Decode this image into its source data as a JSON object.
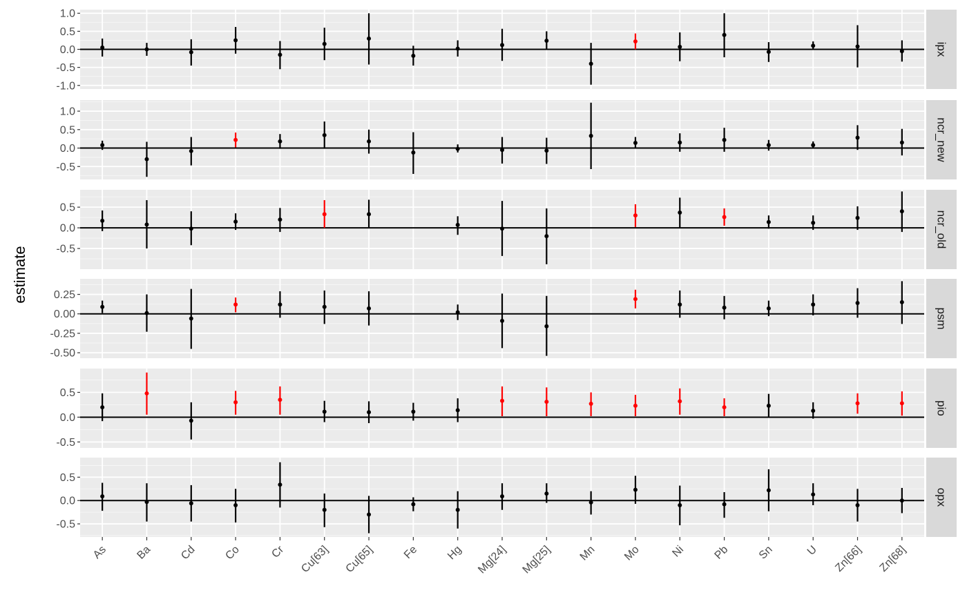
{
  "colors": {
    "panel_bg": "#EBEBEB",
    "grid_major": "#FFFFFF",
    "strip_bg": "#D9D9D9",
    "significant": "#FF0000",
    "default": "#000000",
    "tick_text": "#4D4D4D"
  },
  "chart_data": {
    "type": "faceted-errorbar",
    "ylabel": "estimate",
    "xlabel": "",
    "categories": [
      "As",
      "Ba",
      "Cd",
      "Co",
      "Cr",
      "Cu[63]",
      "Cu[65]",
      "Fe",
      "Hg",
      "Mg[24]",
      "Mg[25]",
      "Mn",
      "Mo",
      "Ni",
      "Pb",
      "Sn",
      "U",
      "Zn[66]",
      "Zn[68]"
    ],
    "reference_line": 0,
    "grid": true,
    "facets": [
      {
        "name": "ipx",
        "ylim": [
          -1.1,
          1.1
        ],
        "yticks": [
          1.0,
          0.5,
          0.0,
          -0.5,
          -1.0
        ],
        "yticklabels": [
          "1.0",
          "0.5",
          "0.0",
          "-0.5",
          "-1.0"
        ],
        "points": [
          {
            "x": "As",
            "y": 0.05,
            "lo": -0.2,
            "hi": 0.3,
            "sig": false
          },
          {
            "x": "Ba",
            "y": 0.0,
            "lo": -0.18,
            "hi": 0.18,
            "sig": false
          },
          {
            "x": "Cd",
            "y": -0.08,
            "lo": -0.45,
            "hi": 0.28,
            "sig": false
          },
          {
            "x": "Co",
            "y": 0.25,
            "lo": -0.12,
            "hi": 0.62,
            "sig": false
          },
          {
            "x": "Cr",
            "y": -0.15,
            "lo": -0.55,
            "hi": 0.23,
            "sig": false
          },
          {
            "x": "Cu[63]",
            "y": 0.15,
            "lo": -0.3,
            "hi": 0.6,
            "sig": false
          },
          {
            "x": "Cu[65]",
            "y": 0.3,
            "lo": -0.42,
            "hi": 1.0,
            "sig": false
          },
          {
            "x": "Fe",
            "y": -0.18,
            "lo": -0.45,
            "hi": 0.1,
            "sig": false
          },
          {
            "x": "Hg",
            "y": 0.02,
            "lo": -0.2,
            "hi": 0.25,
            "sig": false
          },
          {
            "x": "Mg[24]",
            "y": 0.12,
            "lo": -0.32,
            "hi": 0.57,
            "sig": false
          },
          {
            "x": "Mg[25]",
            "y": 0.24,
            "lo": 0.0,
            "hi": 0.5,
            "sig": false
          },
          {
            "x": "Mn",
            "y": -0.4,
            "lo": -0.98,
            "hi": 0.18,
            "sig": false
          },
          {
            "x": "Mo",
            "y": 0.22,
            "lo": 0.0,
            "hi": 0.44,
            "sig": true
          },
          {
            "x": "Ni",
            "y": 0.07,
            "lo": -0.33,
            "hi": 0.47,
            "sig": false
          },
          {
            "x": "Pb",
            "y": 0.4,
            "lo": -0.22,
            "hi": 1.0,
            "sig": false
          },
          {
            "x": "Sn",
            "y": -0.07,
            "lo": -0.35,
            "hi": 0.2,
            "sig": false
          },
          {
            "x": "U",
            "y": 0.1,
            "lo": 0.0,
            "hi": 0.22,
            "sig": false
          },
          {
            "x": "Zn[66]",
            "y": 0.08,
            "lo": -0.5,
            "hi": 0.67,
            "sig": false
          },
          {
            "x": "Zn[68]",
            "y": -0.05,
            "lo": -0.34,
            "hi": 0.25,
            "sig": false
          }
        ]
      },
      {
        "name": "ncr_new",
        "ylim": [
          -0.85,
          1.3
        ],
        "yticks": [
          1.0,
          0.5,
          0.0,
          -0.5
        ],
        "yticklabels": [
          "1.0",
          "0.5",
          "0.0",
          "-0.5"
        ],
        "points": [
          {
            "x": "As",
            "y": 0.08,
            "lo": -0.05,
            "hi": 0.2,
            "sig": false
          },
          {
            "x": "Ba",
            "y": -0.3,
            "lo": -0.78,
            "hi": 0.17,
            "sig": false
          },
          {
            "x": "Cd",
            "y": -0.08,
            "lo": -0.47,
            "hi": 0.3,
            "sig": false
          },
          {
            "x": "Co",
            "y": 0.22,
            "lo": 0.02,
            "hi": 0.42,
            "sig": true
          },
          {
            "x": "Cr",
            "y": 0.18,
            "lo": -0.02,
            "hi": 0.38,
            "sig": false
          },
          {
            "x": "Cu[63]",
            "y": 0.35,
            "lo": -0.02,
            "hi": 0.72,
            "sig": false
          },
          {
            "x": "Cu[65]",
            "y": 0.18,
            "lo": -0.15,
            "hi": 0.5,
            "sig": false
          },
          {
            "x": "Fe",
            "y": -0.12,
            "lo": -0.7,
            "hi": 0.43,
            "sig": false
          },
          {
            "x": "Hg",
            "y": -0.02,
            "lo": -0.12,
            "hi": 0.1,
            "sig": false
          },
          {
            "x": "Mg[24]",
            "y": -0.05,
            "lo": -0.42,
            "hi": 0.3,
            "sig": false
          },
          {
            "x": "Mg[25]",
            "y": -0.07,
            "lo": -0.43,
            "hi": 0.28,
            "sig": false
          },
          {
            "x": "Mn",
            "y": 0.33,
            "lo": -0.57,
            "hi": 1.23,
            "sig": false
          },
          {
            "x": "Mo",
            "y": 0.14,
            "lo": 0.0,
            "hi": 0.3,
            "sig": false
          },
          {
            "x": "Ni",
            "y": 0.15,
            "lo": -0.1,
            "hi": 0.4,
            "sig": false
          },
          {
            "x": "Pb",
            "y": 0.22,
            "lo": -0.1,
            "hi": 0.55,
            "sig": false
          },
          {
            "x": "Sn",
            "y": 0.08,
            "lo": -0.07,
            "hi": 0.22,
            "sig": false
          },
          {
            "x": "U",
            "y": 0.08,
            "lo": 0.0,
            "hi": 0.18,
            "sig": false
          },
          {
            "x": "Zn[66]",
            "y": 0.28,
            "lo": -0.05,
            "hi": 0.62,
            "sig": false
          },
          {
            "x": "Zn[68]",
            "y": 0.15,
            "lo": -0.2,
            "hi": 0.52,
            "sig": false
          }
        ]
      },
      {
        "name": "ncr_old",
        "ylim": [
          -1.0,
          0.92
        ],
        "yticks": [
          0.5,
          0.0,
          -0.5
        ],
        "yticklabels": [
          "0.5",
          "0.0",
          "-0.5"
        ],
        "points": [
          {
            "x": "As",
            "y": 0.17,
            "lo": -0.08,
            "hi": 0.42,
            "sig": false
          },
          {
            "x": "Ba",
            "y": 0.08,
            "lo": -0.5,
            "hi": 0.67,
            "sig": false
          },
          {
            "x": "Cd",
            "y": -0.02,
            "lo": -0.42,
            "hi": 0.4,
            "sig": false
          },
          {
            "x": "Co",
            "y": 0.15,
            "lo": -0.05,
            "hi": 0.35,
            "sig": false
          },
          {
            "x": "Cr",
            "y": 0.2,
            "lo": -0.1,
            "hi": 0.48,
            "sig": false
          },
          {
            "x": "Cu[63]",
            "y": 0.33,
            "lo": 0.0,
            "hi": 0.67,
            "sig": true
          },
          {
            "x": "Cu[65]",
            "y": 0.33,
            "lo": 0.0,
            "hi": 0.68,
            "sig": false
          },
          {
            "x": "Hg",
            "y": 0.07,
            "lo": -0.17,
            "hi": 0.28,
            "sig": false
          },
          {
            "x": "Mg[24]",
            "y": -0.02,
            "lo": -0.68,
            "hi": 0.65,
            "sig": false
          },
          {
            "x": "Mg[25]",
            "y": -0.2,
            "lo": -0.88,
            "hi": 0.47,
            "sig": false
          },
          {
            "x": "Mo",
            "y": 0.3,
            "lo": 0.02,
            "hi": 0.57,
            "sig": true
          },
          {
            "x": "Ni",
            "y": 0.37,
            "lo": 0.0,
            "hi": 0.73,
            "sig": false
          },
          {
            "x": "Pb",
            "y": 0.26,
            "lo": 0.05,
            "hi": 0.47,
            "sig": true
          },
          {
            "x": "Sn",
            "y": 0.14,
            "lo": -0.02,
            "hi": 0.3,
            "sig": false
          },
          {
            "x": "U",
            "y": 0.12,
            "lo": -0.05,
            "hi": 0.3,
            "sig": false
          },
          {
            "x": "Zn[66]",
            "y": 0.24,
            "lo": -0.05,
            "hi": 0.52,
            "sig": false
          },
          {
            "x": "Zn[68]",
            "y": 0.4,
            "lo": -0.1,
            "hi": 0.88,
            "sig": false
          }
        ]
      },
      {
        "name": "psm",
        "ylim": [
          -0.57,
          0.45
        ],
        "yticks": [
          0.25,
          0.0,
          -0.25,
          -0.5
        ],
        "yticklabels": [
          "0.25",
          "0.00",
          "-0.25",
          "-0.50"
        ],
        "points": [
          {
            "x": "As",
            "y": 0.09,
            "lo": 0.01,
            "hi": 0.17,
            "sig": false
          },
          {
            "x": "Ba",
            "y": 0.01,
            "lo": -0.23,
            "hi": 0.25,
            "sig": false
          },
          {
            "x": "Cd",
            "y": -0.06,
            "lo": -0.45,
            "hi": 0.32,
            "sig": false
          },
          {
            "x": "Co",
            "y": 0.12,
            "lo": 0.02,
            "hi": 0.21,
            "sig": true
          },
          {
            "x": "Cr",
            "y": 0.12,
            "lo": -0.05,
            "hi": 0.29,
            "sig": false
          },
          {
            "x": "Cu[63]",
            "y": 0.09,
            "lo": -0.13,
            "hi": 0.3,
            "sig": false
          },
          {
            "x": "Cu[65]",
            "y": 0.07,
            "lo": -0.15,
            "hi": 0.29,
            "sig": false
          },
          {
            "x": "Hg",
            "y": 0.02,
            "lo": -0.08,
            "hi": 0.12,
            "sig": false
          },
          {
            "x": "Mg[24]",
            "y": -0.09,
            "lo": -0.44,
            "hi": 0.26,
            "sig": false
          },
          {
            "x": "Mg[25]",
            "y": -0.16,
            "lo": -0.54,
            "hi": 0.23,
            "sig": false
          },
          {
            "x": "Mo",
            "y": 0.19,
            "lo": 0.07,
            "hi": 0.31,
            "sig": true
          },
          {
            "x": "Ni",
            "y": 0.12,
            "lo": -0.05,
            "hi": 0.3,
            "sig": false
          },
          {
            "x": "Pb",
            "y": 0.08,
            "lo": -0.07,
            "hi": 0.23,
            "sig": false
          },
          {
            "x": "Sn",
            "y": 0.07,
            "lo": -0.03,
            "hi": 0.17,
            "sig": false
          },
          {
            "x": "U",
            "y": 0.12,
            "lo": -0.02,
            "hi": 0.25,
            "sig": false
          },
          {
            "x": "Zn[66]",
            "y": 0.14,
            "lo": -0.05,
            "hi": 0.33,
            "sig": false
          },
          {
            "x": "Zn[68]",
            "y": 0.15,
            "lo": -0.13,
            "hi": 0.42,
            "sig": false
          }
        ]
      },
      {
        "name": "pio",
        "ylim": [
          -0.62,
          0.98
        ],
        "yticks": [
          0.5,
          0.0,
          -0.5
        ],
        "yticklabels": [
          "0.5",
          "0.0",
          "-0.5"
        ],
        "points": [
          {
            "x": "As",
            "y": 0.2,
            "lo": -0.08,
            "hi": 0.48,
            "sig": false
          },
          {
            "x": "Ba",
            "y": 0.48,
            "lo": 0.05,
            "hi": 0.9,
            "sig": true
          },
          {
            "x": "Cd",
            "y": -0.07,
            "lo": -0.45,
            "hi": 0.3,
            "sig": false
          },
          {
            "x": "Co",
            "y": 0.3,
            "lo": 0.05,
            "hi": 0.53,
            "sig": true
          },
          {
            "x": "Cr",
            "y": 0.35,
            "lo": 0.05,
            "hi": 0.62,
            "sig": true
          },
          {
            "x": "Cu[63]",
            "y": 0.11,
            "lo": -0.1,
            "hi": 0.33,
            "sig": false
          },
          {
            "x": "Cu[65]",
            "y": 0.1,
            "lo": -0.12,
            "hi": 0.32,
            "sig": false
          },
          {
            "x": "Fe",
            "y": 0.11,
            "lo": -0.07,
            "hi": 0.29,
            "sig": false
          },
          {
            "x": "Hg",
            "y": 0.14,
            "lo": -0.1,
            "hi": 0.38,
            "sig": false
          },
          {
            "x": "Mg[24]",
            "y": 0.33,
            "lo": 0.02,
            "hi": 0.62,
            "sig": true
          },
          {
            "x": "Mg[25]",
            "y": 0.31,
            "lo": 0.02,
            "hi": 0.6,
            "sig": true
          },
          {
            "x": "Mn",
            "y": 0.27,
            "lo": 0.02,
            "hi": 0.5,
            "sig": true
          },
          {
            "x": "Mo",
            "y": 0.23,
            "lo": 0.02,
            "hi": 0.45,
            "sig": true
          },
          {
            "x": "Ni",
            "y": 0.32,
            "lo": 0.05,
            "hi": 0.58,
            "sig": true
          },
          {
            "x": "Pb",
            "y": 0.2,
            "lo": 0.02,
            "hi": 0.38,
            "sig": true
          },
          {
            "x": "Sn",
            "y": 0.23,
            "lo": 0.0,
            "hi": 0.47,
            "sig": false
          },
          {
            "x": "U",
            "y": 0.13,
            "lo": -0.03,
            "hi": 0.3,
            "sig": false
          },
          {
            "x": "Zn[66]",
            "y": 0.28,
            "lo": 0.07,
            "hi": 0.48,
            "sig": true
          },
          {
            "x": "Zn[68]",
            "y": 0.28,
            "lo": 0.03,
            "hi": 0.52,
            "sig": true
          }
        ]
      },
      {
        "name": "opx",
        "ylim": [
          -0.78,
          0.92
        ],
        "yticks": [
          0.5,
          0.0,
          -0.5
        ],
        "yticklabels": [
          "0.5",
          "0.0",
          "-0.5"
        ],
        "points": [
          {
            "x": "As",
            "y": 0.09,
            "lo": -0.22,
            "hi": 0.38,
            "sig": false
          },
          {
            "x": "Ba",
            "y": -0.03,
            "lo": -0.45,
            "hi": 0.37,
            "sig": false
          },
          {
            "x": "Cd",
            "y": -0.06,
            "lo": -0.45,
            "hi": 0.33,
            "sig": false
          },
          {
            "x": "Co",
            "y": -0.1,
            "lo": -0.47,
            "hi": 0.25,
            "sig": false
          },
          {
            "x": "Cr",
            "y": 0.34,
            "lo": -0.15,
            "hi": 0.82,
            "sig": false
          },
          {
            "x": "Cu[63]",
            "y": -0.2,
            "lo": -0.57,
            "hi": 0.15,
            "sig": false
          },
          {
            "x": "Cu[65]",
            "y": -0.3,
            "lo": -0.7,
            "hi": 0.1,
            "sig": false
          },
          {
            "x": "Fe",
            "y": -0.08,
            "lo": -0.23,
            "hi": 0.07,
            "sig": false
          },
          {
            "x": "Hg",
            "y": -0.2,
            "lo": -0.6,
            "hi": 0.2,
            "sig": false
          },
          {
            "x": "Mg[24]",
            "y": 0.09,
            "lo": -0.2,
            "hi": 0.37,
            "sig": false
          },
          {
            "x": "Mg[25]",
            "y": 0.15,
            "lo": -0.05,
            "hi": 0.37,
            "sig": false
          },
          {
            "x": "Mn",
            "y": -0.04,
            "lo": -0.3,
            "hi": 0.2,
            "sig": false
          },
          {
            "x": "Mo",
            "y": 0.23,
            "lo": -0.07,
            "hi": 0.53,
            "sig": false
          },
          {
            "x": "Ni",
            "y": -0.1,
            "lo": -0.53,
            "hi": 0.32,
            "sig": false
          },
          {
            "x": "Pb",
            "y": -0.08,
            "lo": -0.37,
            "hi": 0.18,
            "sig": false
          },
          {
            "x": "Sn",
            "y": 0.22,
            "lo": -0.23,
            "hi": 0.67,
            "sig": false
          },
          {
            "x": "U",
            "y": 0.13,
            "lo": -0.1,
            "hi": 0.37,
            "sig": false
          },
          {
            "x": "Zn[66]",
            "y": -0.1,
            "lo": -0.45,
            "hi": 0.25,
            "sig": false
          },
          {
            "x": "Zn[68]",
            "y": 0.0,
            "lo": -0.27,
            "hi": 0.27,
            "sig": false
          }
        ]
      }
    ]
  }
}
